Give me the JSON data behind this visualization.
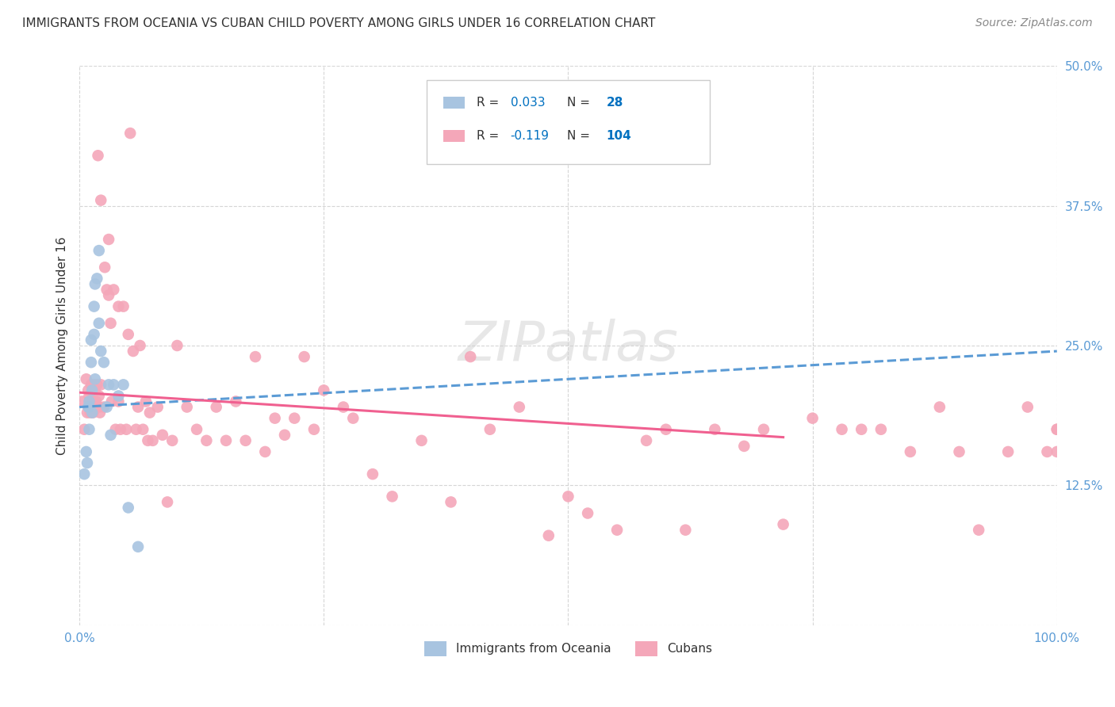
{
  "title": "IMMIGRANTS FROM OCEANIA VS CUBAN CHILD POVERTY AMONG GIRLS UNDER 16 CORRELATION CHART",
  "source": "Source: ZipAtlas.com",
  "ylabel": "Child Poverty Among Girls Under 16",
  "xlim": [
    0,
    1.0
  ],
  "ylim": [
    0,
    0.5
  ],
  "series1_label": "Immigrants from Oceania",
  "series2_label": "Cubans",
  "series1_color": "#a8c4e0",
  "series2_color": "#f4a7b9",
  "series1_R": "0.033",
  "series2_R": "-0.119",
  "series1_N": "28",
  "series2_N": "104",
  "trendline1_color": "#5b9bd5",
  "trendline2_color": "#f06090",
  "legend_R_color": "#0070c0",
  "legend_N_color": "#0070c0",
  "watermark": "ZIPatlas",
  "background_color": "#ffffff",
  "grid_color": "#cccccc",
  "title_fontsize": 11,
  "axis_label_fontsize": 11,
  "tick_fontsize": 11,
  "source_fontsize": 10,
  "series1_x": [
    0.005,
    0.007,
    0.008,
    0.009,
    0.01,
    0.01,
    0.01,
    0.012,
    0.012,
    0.013,
    0.013,
    0.015,
    0.015,
    0.016,
    0.016,
    0.018,
    0.02,
    0.02,
    0.022,
    0.025,
    0.028,
    0.03,
    0.032,
    0.035,
    0.04,
    0.045,
    0.05,
    0.06
  ],
  "series1_y": [
    0.135,
    0.155,
    0.145,
    0.195,
    0.2,
    0.195,
    0.175,
    0.255,
    0.235,
    0.21,
    0.19,
    0.285,
    0.26,
    0.22,
    0.305,
    0.31,
    0.335,
    0.27,
    0.245,
    0.235,
    0.195,
    0.215,
    0.17,
    0.215,
    0.205,
    0.215,
    0.105,
    0.07
  ],
  "series2_x": [
    0.003,
    0.005,
    0.007,
    0.008,
    0.009,
    0.01,
    0.01,
    0.011,
    0.012,
    0.012,
    0.013,
    0.013,
    0.014,
    0.015,
    0.015,
    0.016,
    0.016,
    0.017,
    0.018,
    0.019,
    0.02,
    0.02,
    0.021,
    0.022,
    0.022,
    0.025,
    0.026,
    0.028,
    0.03,
    0.03,
    0.032,
    0.033,
    0.035,
    0.037,
    0.04,
    0.04,
    0.042,
    0.045,
    0.048,
    0.05,
    0.052,
    0.055,
    0.058,
    0.06,
    0.062,
    0.065,
    0.068,
    0.07,
    0.072,
    0.075,
    0.08,
    0.085,
    0.09,
    0.095,
    0.1,
    0.11,
    0.12,
    0.13,
    0.14,
    0.15,
    0.16,
    0.17,
    0.18,
    0.19,
    0.2,
    0.21,
    0.22,
    0.23,
    0.24,
    0.25,
    0.27,
    0.28,
    0.3,
    0.32,
    0.35,
    0.38,
    0.4,
    0.42,
    0.45,
    0.48,
    0.5,
    0.52,
    0.55,
    0.58,
    0.6,
    0.62,
    0.65,
    0.68,
    0.7,
    0.72,
    0.75,
    0.78,
    0.8,
    0.82,
    0.85,
    0.88,
    0.9,
    0.92,
    0.95,
    0.97,
    0.99,
    1.0,
    1.0,
    1.0
  ],
  "series2_y": [
    0.2,
    0.175,
    0.22,
    0.19,
    0.21,
    0.205,
    0.195,
    0.19,
    0.215,
    0.195,
    0.2,
    0.195,
    0.19,
    0.215,
    0.195,
    0.21,
    0.195,
    0.2,
    0.215,
    0.42,
    0.205,
    0.195,
    0.19,
    0.215,
    0.38,
    0.195,
    0.32,
    0.3,
    0.345,
    0.295,
    0.27,
    0.2,
    0.3,
    0.175,
    0.285,
    0.2,
    0.175,
    0.285,
    0.175,
    0.26,
    0.44,
    0.245,
    0.175,
    0.195,
    0.25,
    0.175,
    0.2,
    0.165,
    0.19,
    0.165,
    0.195,
    0.17,
    0.11,
    0.165,
    0.25,
    0.195,
    0.175,
    0.165,
    0.195,
    0.165,
    0.2,
    0.165,
    0.24,
    0.155,
    0.185,
    0.17,
    0.185,
    0.24,
    0.175,
    0.21,
    0.195,
    0.185,
    0.135,
    0.115,
    0.165,
    0.11,
    0.24,
    0.175,
    0.195,
    0.08,
    0.115,
    0.1,
    0.085,
    0.165,
    0.175,
    0.085,
    0.175,
    0.16,
    0.175,
    0.09,
    0.185,
    0.175,
    0.175,
    0.175,
    0.155,
    0.195,
    0.155,
    0.085,
    0.155,
    0.195,
    0.155,
    0.175,
    0.155,
    0.175
  ]
}
